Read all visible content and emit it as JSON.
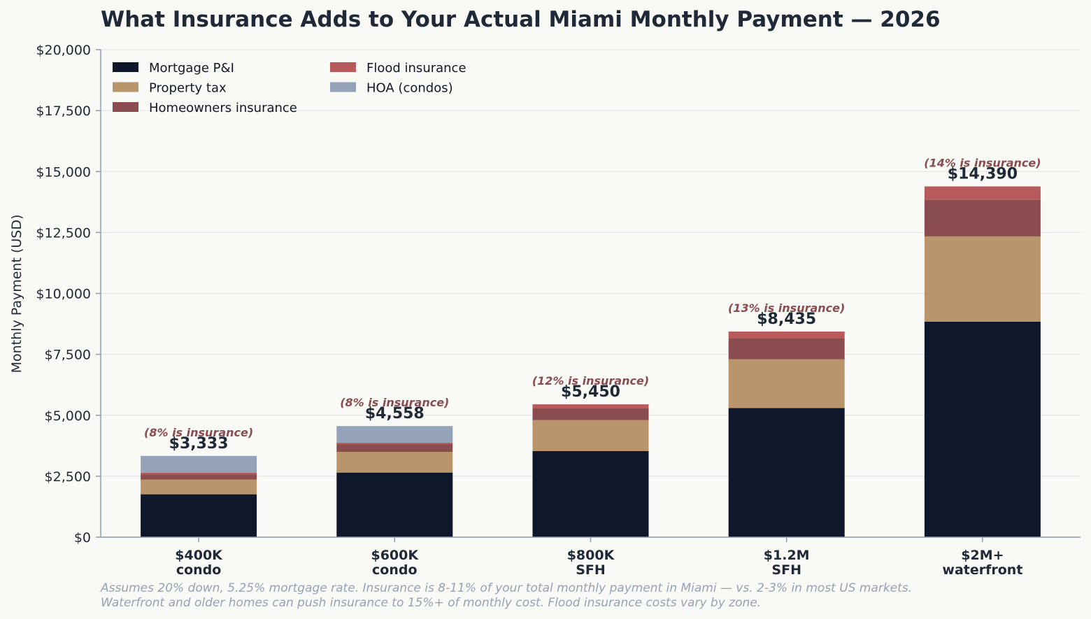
{
  "chart_data": {
    "type": "bar",
    "stacked": true,
    "title": "What Insurance Adds to Your Actual Miami Monthly Payment — 2026",
    "xlabel": "",
    "ylabel": "Monthly Payment (USD)",
    "ylim": [
      0,
      20000
    ],
    "yticks": [
      0,
      2500,
      5000,
      7500,
      10000,
      12500,
      15000,
      17500,
      20000
    ],
    "ytick_labels": [
      "$0",
      "$2,500",
      "$5,000",
      "$7,500",
      "$10,000",
      "$12,500",
      "$15,000",
      "$17,500",
      "$20,000"
    ],
    "categories": [
      [
        "$400K",
        "condo"
      ],
      [
        "$600K",
        "condo"
      ],
      [
        "$800K",
        "SFH"
      ],
      [
        "$1.2M",
        "SFH"
      ],
      [
        "$2M+",
        "waterfront"
      ]
    ],
    "series": [
      {
        "name": "Mortgage P&I",
        "color": "#0f172a",
        "values": [
          1760,
          2650,
          3530,
          5300,
          8840
        ]
      },
      {
        "name": "Property tax",
        "color": "#b8956a",
        "values": [
          600,
          850,
          1270,
          2000,
          3500
        ]
      },
      {
        "name": "Homeowners insurance",
        "color": "#8b4c4f",
        "values": [
          220,
          320,
          500,
          850,
          1500
        ]
      },
      {
        "name": "Flood insurance",
        "color": "#b85a5b",
        "values": [
          63,
          58,
          150,
          285,
          550
        ]
      },
      {
        "name": "HOA (condos)",
        "color": "#94a3b8",
        "values": [
          690,
          680,
          0,
          0,
          0
        ]
      }
    ],
    "totals": [
      3333,
      4558,
      5450,
      8435,
      14390
    ],
    "total_labels": [
      "$3,333",
      "$4,558",
      "$5,450",
      "$8,435",
      "$14,390"
    ],
    "insurance_notes": [
      "(8% is insurance)",
      "(8% is insurance)",
      "(12% is insurance)",
      "(13% is insurance)",
      "(14% is insurance)"
    ],
    "legend_placement": "top-left",
    "grid": true
  },
  "footnote": [
    "Assumes 20% down, 5.25% mortgage rate. Insurance is 8-11% of your total monthly payment in Miami — vs. 2-3% in most US markets.",
    "Waterfront and older homes can push insurance to 15%+ of monthly cost. Flood insurance costs vary by zone."
  ]
}
